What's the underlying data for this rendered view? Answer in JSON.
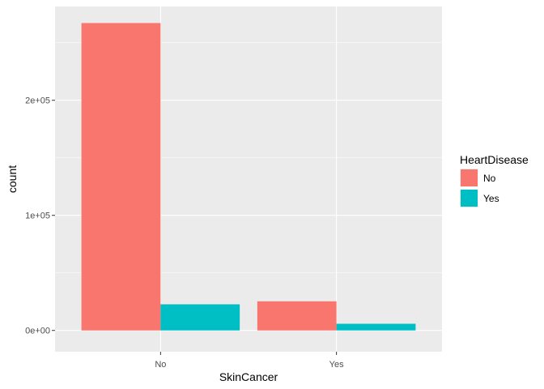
{
  "chart_data": {
    "type": "bar",
    "title": "",
    "xlabel": "SkinCancer",
    "ylabel": "count",
    "categories": [
      "No",
      "Yes"
    ],
    "series": [
      {
        "name": "No",
        "color": "#F8766D",
        "values": [
          267100,
          25300
        ]
      },
      {
        "name": "Yes",
        "color": "#00BFC4",
        "values": [
          22700,
          5800
        ]
      }
    ],
    "ylim": [
      -18500,
      281500
    ],
    "yticks": [
      0,
      100000,
      200000
    ],
    "yticklabels": [
      "0e+00",
      "1e+05",
      "2e+05"
    ],
    "yminor": [
      50000,
      150000,
      250000
    ],
    "grid": true,
    "legend": {
      "title": "HeartDisease",
      "position": "right"
    }
  }
}
